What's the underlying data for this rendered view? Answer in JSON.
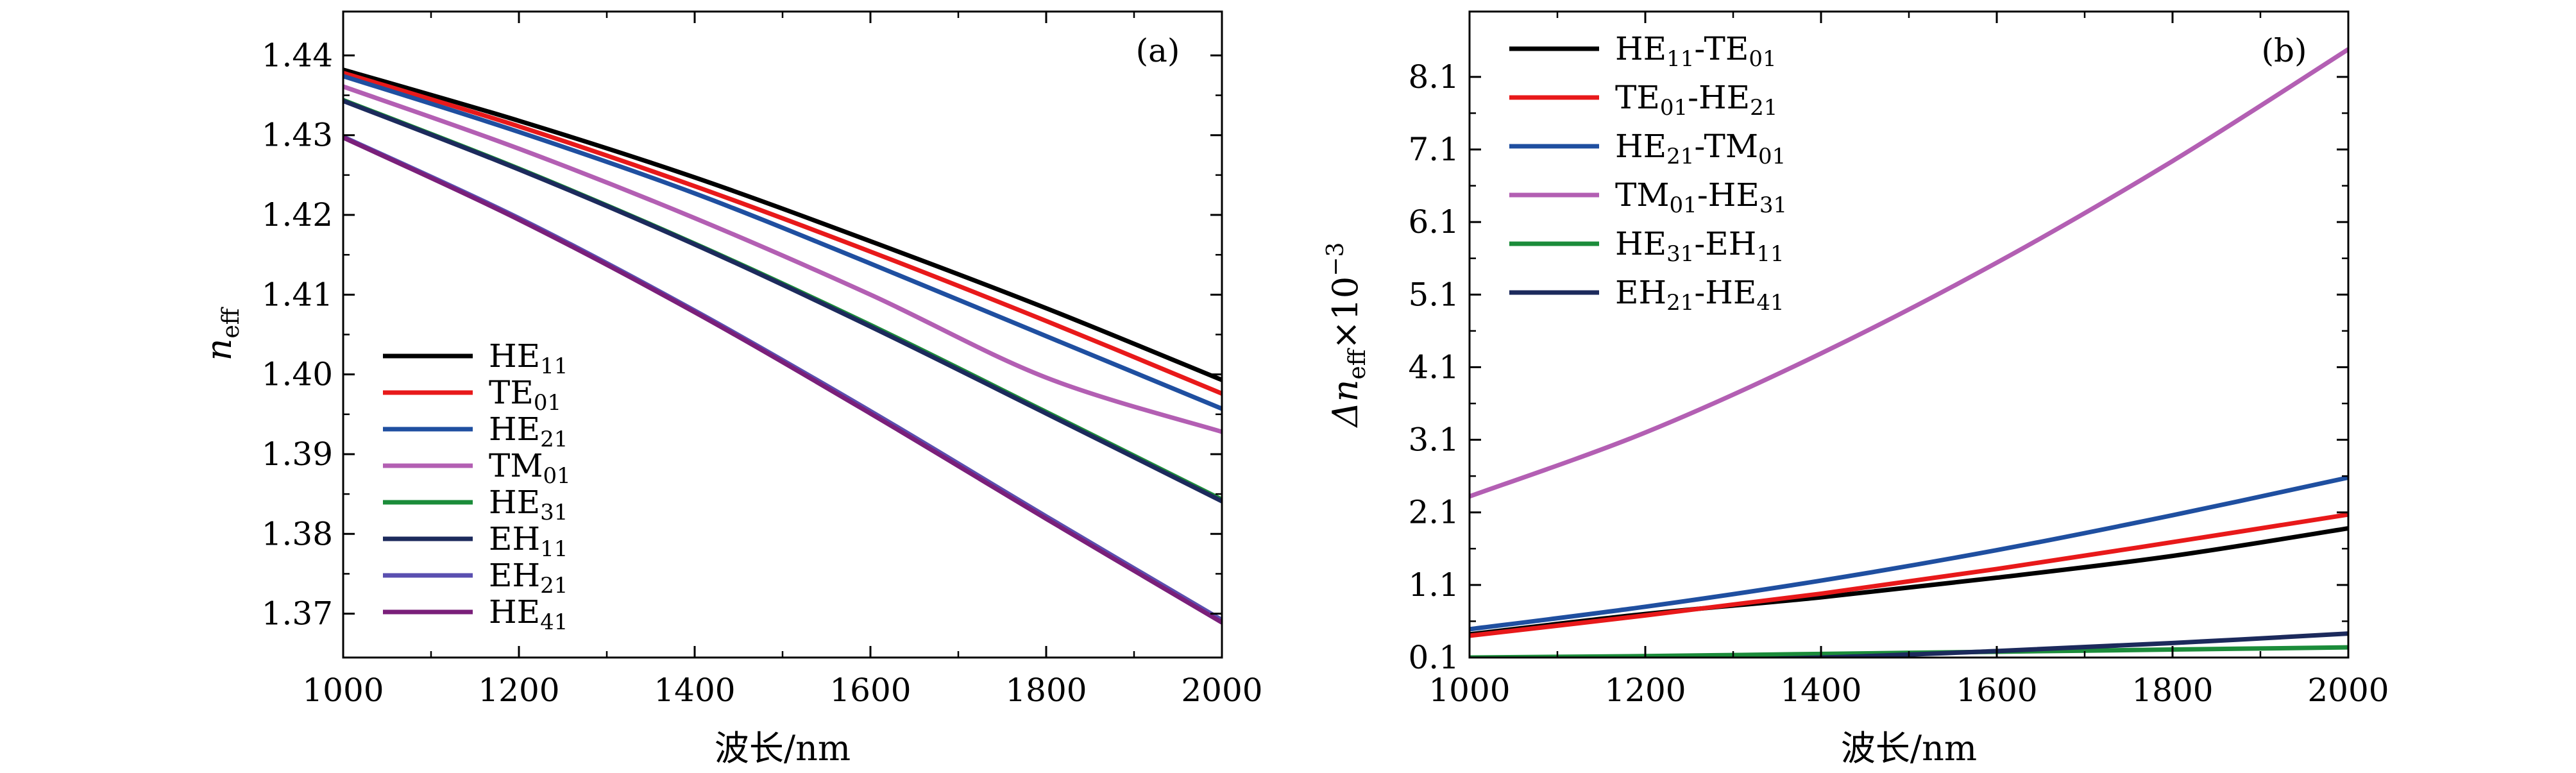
{
  "chart_data": [
    {
      "type": "line",
      "panel_label": "(a)",
      "xlabel": "波长/nm",
      "ylabel_main": "n",
      "ylabel_sub": "eff",
      "xlim": [
        1000,
        2000
      ],
      "ylim": [
        1.3645,
        1.4455
      ],
      "xticks": [
        1000,
        1200,
        1400,
        1600,
        1800,
        2000
      ],
      "yticks": [
        1.37,
        1.38,
        1.39,
        1.4,
        1.41,
        1.42,
        1.43,
        1.44
      ],
      "ytick_labels": [
        "1.37",
        "1.38",
        "1.39",
        "1.40",
        "1.41",
        "1.42",
        "1.43",
        "1.44"
      ],
      "legend_position": "lower-left",
      "series": [
        {
          "name_main": "HE",
          "name_sub": "11",
          "color": "#000000",
          "x": [
            1000,
            1200,
            1400,
            1600,
            1800,
            2000
          ],
          "y": [
            1.4382,
            1.4318,
            1.4247,
            1.4167,
            1.4083,
            1.3993
          ]
        },
        {
          "name_main": "TE",
          "name_sub": "01",
          "color": "#e8191a",
          "x": [
            1000,
            1200,
            1400,
            1600,
            1800,
            2000
          ],
          "y": [
            1.4378,
            1.4311,
            1.4236,
            1.4154,
            1.4067,
            1.3976
          ]
        },
        {
          "name_main": "HE",
          "name_sub": "21",
          "color": "#1f4fa0",
          "x": [
            1000,
            1200,
            1400,
            1600,
            1800,
            2000
          ],
          "y": [
            1.4374,
            1.4304,
            1.4227,
            1.4139,
            1.4048,
            1.3957
          ]
        },
        {
          "name_main": "TM",
          "name_sub": "01",
          "color": "#b35fb3",
          "x": [
            1000,
            1200,
            1400,
            1600,
            1800,
            2000
          ],
          "y": [
            1.4361,
            1.4283,
            1.4196,
            1.41,
            1.3996,
            1.3928
          ]
        },
        {
          "name_main": "HE",
          "name_sub": "31",
          "color": "#1b8c3a",
          "x": [
            1000,
            1200,
            1400,
            1600,
            1800,
            2000
          ],
          "y": [
            1.4344,
            1.4258,
            1.4164,
            1.4062,
            1.3953,
            1.3843
          ]
        },
        {
          "name_main": "EH",
          "name_sub": "11",
          "color": "#1c2a5c",
          "x": [
            1000,
            1200,
            1400,
            1600,
            1800,
            2000
          ],
          "y": [
            1.4343,
            1.4257,
            1.4163,
            1.406,
            1.3951,
            1.3841
          ]
        },
        {
          "name_main": "EH",
          "name_sub": "21",
          "color": "#5a4fb0",
          "x": [
            1000,
            1200,
            1400,
            1600,
            1800,
            2000
          ],
          "y": [
            1.4298,
            1.4196,
            1.408,
            1.3954,
            1.3822,
            1.3692
          ]
        },
        {
          "name_main": "HE",
          "name_sub": "41",
          "color": "#7a1f7a",
          "x": [
            1000,
            1200,
            1400,
            1600,
            1800,
            2000
          ],
          "y": [
            1.4297,
            1.4194,
            1.4078,
            1.3951,
            1.3819,
            1.3689
          ]
        }
      ]
    },
    {
      "type": "line",
      "panel_label": "(b)",
      "xlabel": "波长/nm",
      "ylabel_prefix": "Δn",
      "ylabel_sub": "eff",
      "ylabel_suffix": "×10",
      "ylabel_sup": "−3",
      "xlim": [
        1000,
        2000
      ],
      "ylim": [
        0.1,
        9.0
      ],
      "xticks": [
        1000,
        1200,
        1400,
        1600,
        1800,
        2000
      ],
      "yticks": [
        0.1,
        1.1,
        2.1,
        3.1,
        4.1,
        5.1,
        6.1,
        7.1,
        8.1
      ],
      "ytick_labels": [
        "0.1",
        "1.1",
        "2.1",
        "3.1",
        "4.1",
        "5.1",
        "6.1",
        "7.1",
        "8.1"
      ],
      "legend_position": "top-left",
      "series": [
        {
          "name_a": "HE",
          "sub_a": "11",
          "name_b": "TE",
          "sub_b": "01",
          "color": "#000000",
          "x": [
            1000,
            1200,
            1400,
            1600,
            1800,
            2000
          ],
          "y": [
            0.42,
            0.7,
            0.93,
            1.2,
            1.5,
            1.88
          ]
        },
        {
          "name_a": "TE",
          "sub_a": "01",
          "name_b": "HE",
          "sub_b": "21",
          "color": "#e8191a",
          "x": [
            1000,
            1200,
            1400,
            1600,
            1800,
            2000
          ],
          "y": [
            0.4,
            0.68,
            0.98,
            1.32,
            1.69,
            2.07
          ]
        },
        {
          "name_a": "HE",
          "sub_a": "21",
          "name_b": "TM",
          "sub_b": "01",
          "color": "#1f4fa0",
          "x": [
            1000,
            1200,
            1400,
            1600,
            1800,
            2000
          ],
          "y": [
            0.49,
            0.8,
            1.16,
            1.58,
            2.06,
            2.58
          ]
        },
        {
          "name_a": "TM",
          "sub_a": "01",
          "name_b": "HE",
          "sub_b": "31",
          "color": "#b35fb3",
          "x": [
            1000,
            1200,
            1400,
            1600,
            1800,
            2000
          ],
          "y": [
            2.32,
            3.2,
            4.29,
            5.54,
            6.94,
            8.48
          ]
        },
        {
          "name_a": "HE",
          "sub_a": "31",
          "name_b": "EH",
          "sub_b": "11",
          "color": "#1b8c3a",
          "x": [
            1000,
            1200,
            1400,
            1600,
            1800,
            2000
          ],
          "y": [
            0.1,
            0.12,
            0.15,
            0.18,
            0.21,
            0.24
          ]
        },
        {
          "name_a": "EH",
          "sub_a": "21",
          "name_b": "HE",
          "sub_b": "41",
          "color": "#1c2a5c",
          "x": [
            1000,
            1200,
            1400,
            1600,
            1800,
            2000
          ],
          "y": [
            0.05,
            0.06,
            0.1,
            0.19,
            0.3,
            0.43
          ]
        }
      ]
    }
  ]
}
